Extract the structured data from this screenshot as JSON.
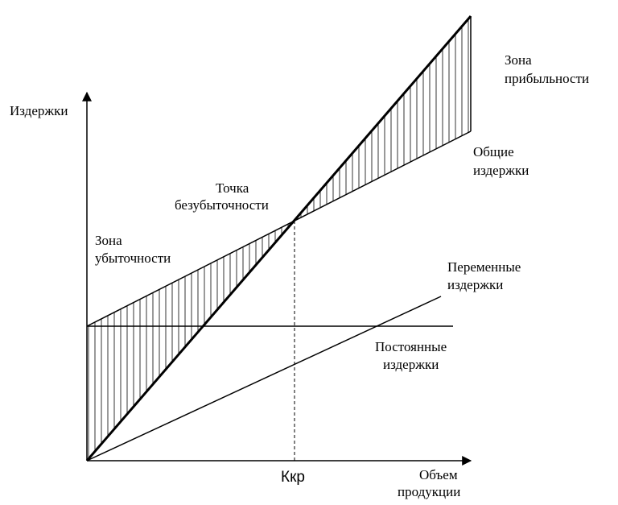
{
  "labels": {
    "y_axis": "Издержки",
    "x_axis_line1": "Объем",
    "x_axis_line2": "продукции",
    "profit_zone_line1": "Зона",
    "profit_zone_line2": "прибыльности",
    "total_costs_line1": "Общие",
    "total_costs_line2": "издержки",
    "breakeven_line1": "Точка",
    "breakeven_line2": "безубыточности",
    "loss_zone_line1": "Зона",
    "loss_zone_line2": "убыточности",
    "variable_costs_line1": "Переменные",
    "variable_costs_line2": "издержки",
    "fixed_costs_line1": "Постоянные",
    "fixed_costs_line2": "издержки",
    "critical_volume": "Ккр"
  },
  "colors": {
    "ink": "#000000",
    "background": "#ffffff"
  }
}
